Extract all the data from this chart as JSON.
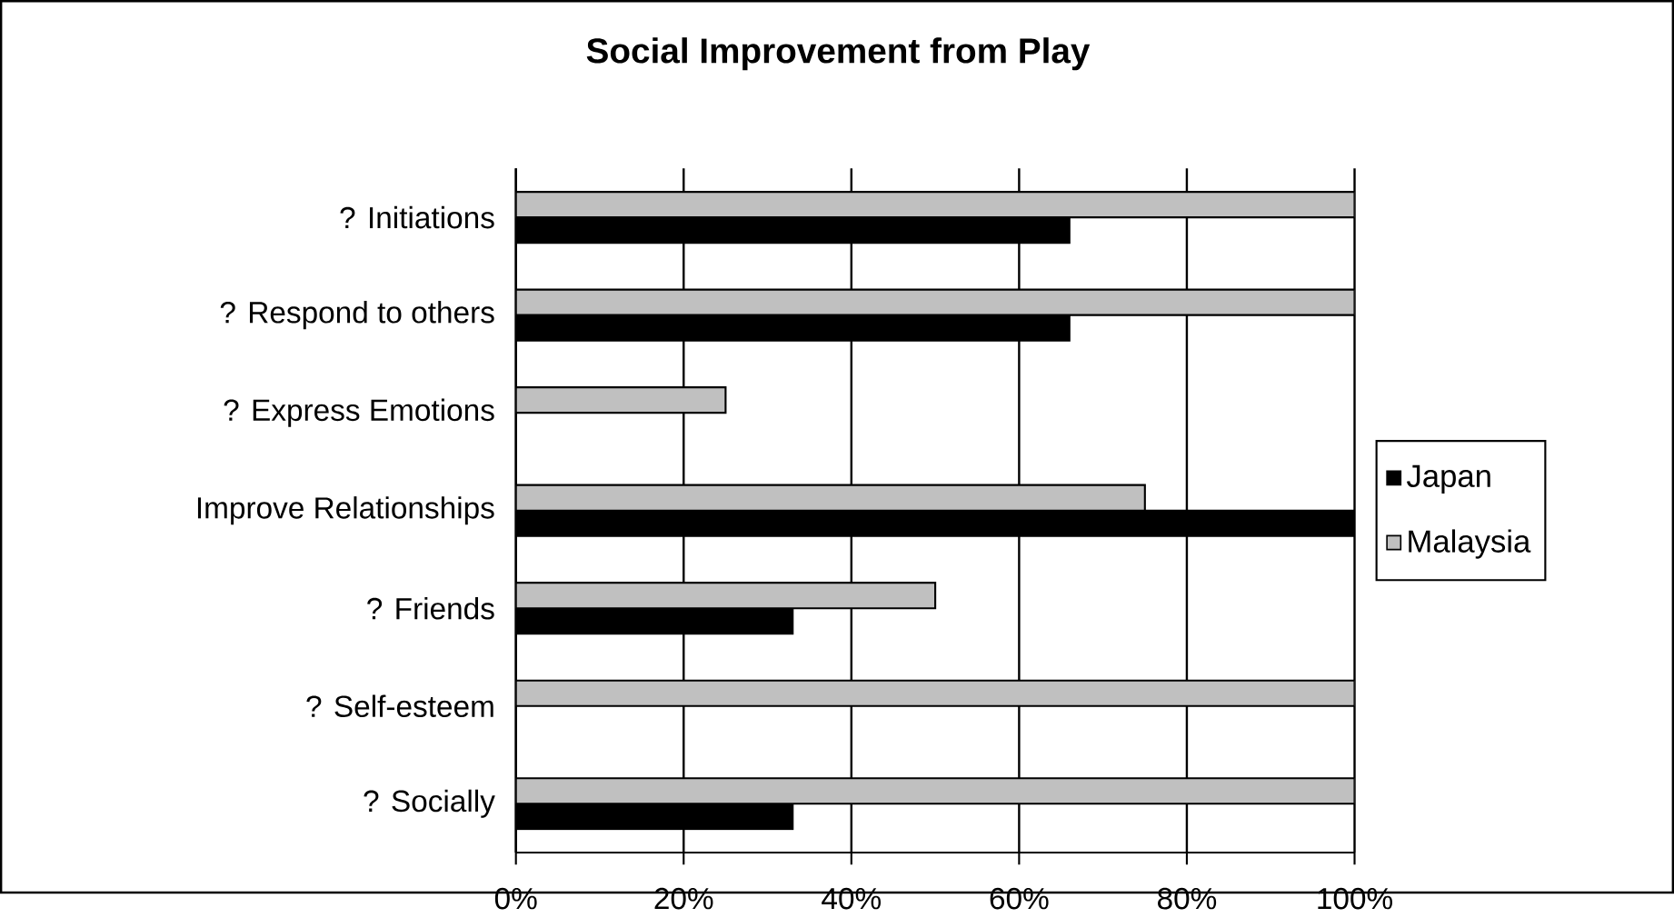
{
  "chart_data": {
    "type": "bar",
    "orientation": "horizontal",
    "title": "Social Improvement from Play",
    "categories": [
      "? Initiations",
      "? Respond to others",
      "? Express Emotions",
      "Improve Relationships",
      "? Friends",
      "? Self-esteem",
      "? Socially"
    ],
    "series": [
      {
        "name": "Japan",
        "color": "#000000",
        "values": [
          66,
          66,
          0,
          100,
          33,
          0,
          33
        ]
      },
      {
        "name": "Malaysia",
        "color": "#c0c0c0",
        "values": [
          100,
          100,
          25,
          75,
          50,
          100,
          100
        ]
      }
    ],
    "xlim": [
      0,
      100
    ],
    "xticks": [
      {
        "value": 0,
        "label": "0%"
      },
      {
        "value": 20,
        "label": "20%"
      },
      {
        "value": 40,
        "label": "40%"
      },
      {
        "value": 60,
        "label": "60%"
      },
      {
        "value": 80,
        "label": "80%"
      },
      {
        "value": 100,
        "label": "100%"
      }
    ],
    "grid": "x",
    "legend": "right"
  }
}
